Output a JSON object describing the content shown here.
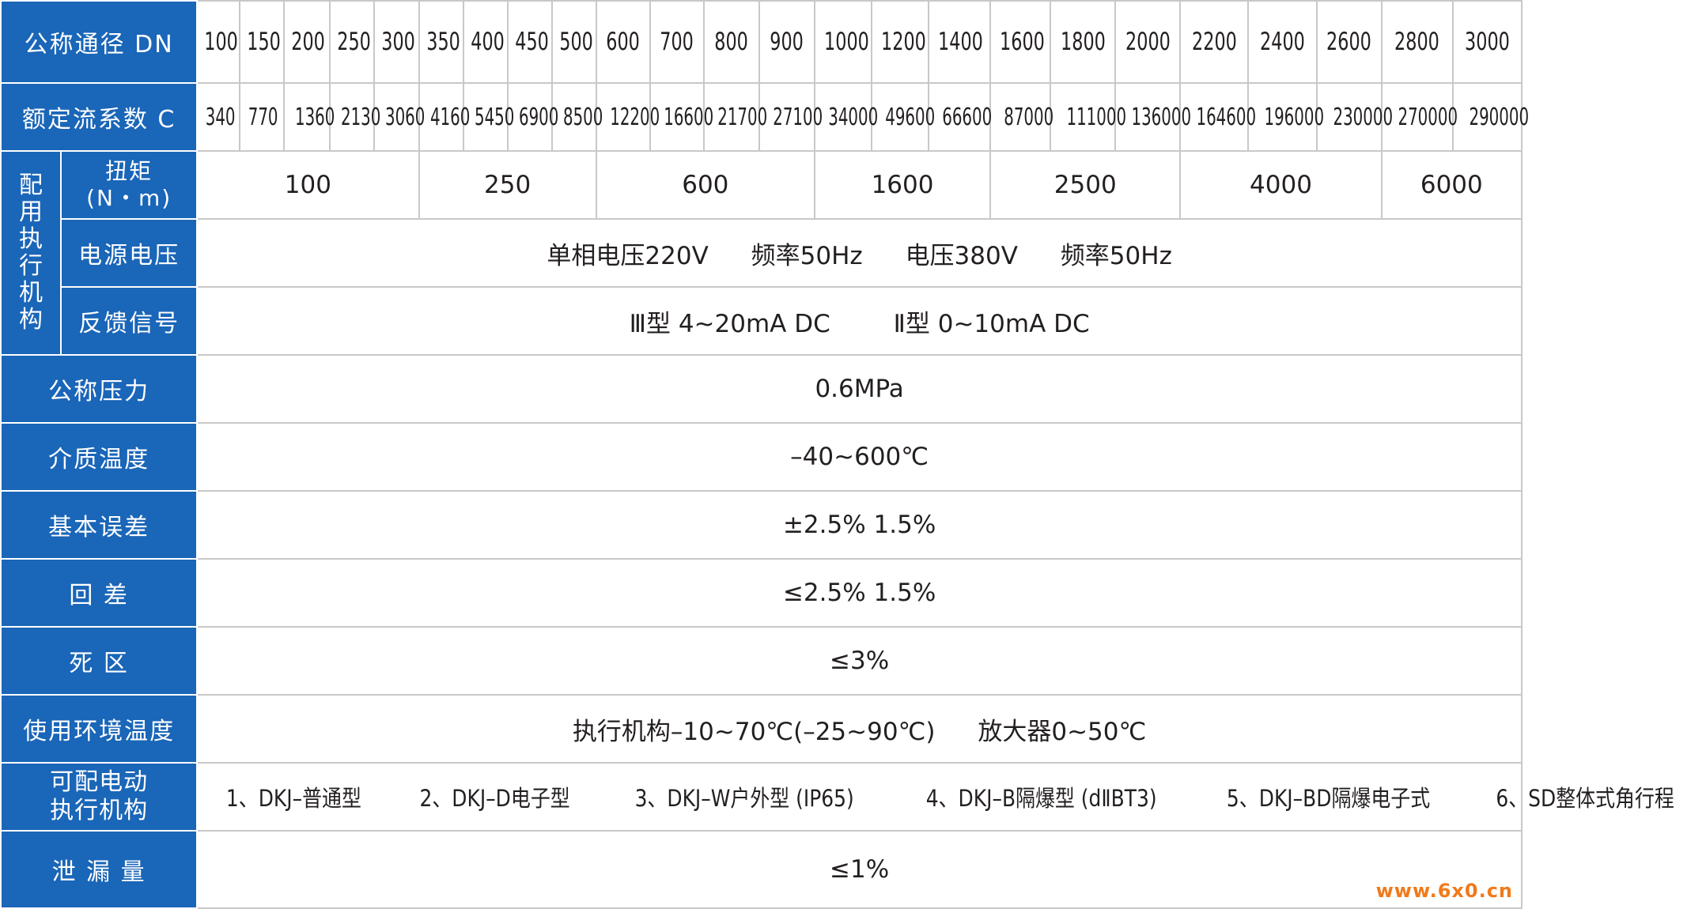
{
  "rows": {
    "dn": {
      "label": "公称通径 DN",
      "values": [
        "100",
        "150",
        "200",
        "250",
        "300",
        "350",
        "400",
        "450",
        "500",
        "600",
        "700",
        "800",
        "900",
        "1000",
        "1200",
        "1400",
        "1600",
        "1800",
        "2000",
        "2200",
        "2400",
        "2600",
        "2800",
        "3000"
      ]
    },
    "c": {
      "label": "额定流系数 C",
      "values": [
        "340",
        "770",
        "1360",
        "2130",
        "3060",
        "4160",
        "5450",
        "6900",
        "8500",
        "12200",
        "16600",
        "21700",
        "27100",
        "34000",
        "49600",
        "66600",
        "87000",
        "111000",
        "136000",
        "164600",
        "196000",
        "230000",
        "270000",
        "290000"
      ]
    },
    "actuator_group": {
      "label": "配用执行机构"
    },
    "torque": {
      "label_line1": "扭矩",
      "label_line2": "(N・m)",
      "values": [
        "100",
        "250",
        "600",
        "1600",
        "2500",
        "4000",
        "6000"
      ]
    },
    "power": {
      "label": "电源电压",
      "parts": [
        "单相电压220V",
        "频率50Hz",
        "电压380V",
        "频率50Hz"
      ]
    },
    "feedback": {
      "label": "反馈信号",
      "parts": [
        "Ⅲ型 4~20mA DC",
        "Ⅱ型 0~10mA DC"
      ]
    },
    "pressure": {
      "label": "公称压力",
      "value": "0.6MPa"
    },
    "medium_temp": {
      "label": "介质温度",
      "value": "–40~600℃"
    },
    "basic_error": {
      "label": "基本误差",
      "value": "±2.5% 1.5%"
    },
    "hysteresis": {
      "label": "回 差",
      "value": "≤2.5% 1.5%"
    },
    "dead_zone": {
      "label": "死 区",
      "value": "≤3%"
    },
    "ambient_temp": {
      "label": "使用环境温度",
      "parts": [
        "执行机构–10~70℃(–25~90℃)",
        "放大器0~50℃"
      ]
    },
    "models": {
      "label_line1": "可配电动",
      "label_line2": "执行机构",
      "items": [
        "1、DKJ–普通型",
        "2、DKJ–D电子型",
        "3、DKJ–W户外型 (IP65)",
        "4、DKJ–B隔爆型 (dⅡBT3)",
        "5、DKJ–BD隔爆电子式",
        "6、SD整体式角行程"
      ]
    },
    "leakage": {
      "label": "泄 漏 量",
      "value": "≤1%"
    }
  },
  "watermark": "www.6x0.cn",
  "colors": {
    "header_bg": "#1a66b8",
    "header_text": "#ffffff",
    "grid": "#c8c8c8",
    "watermark": "#f07a1a"
  }
}
